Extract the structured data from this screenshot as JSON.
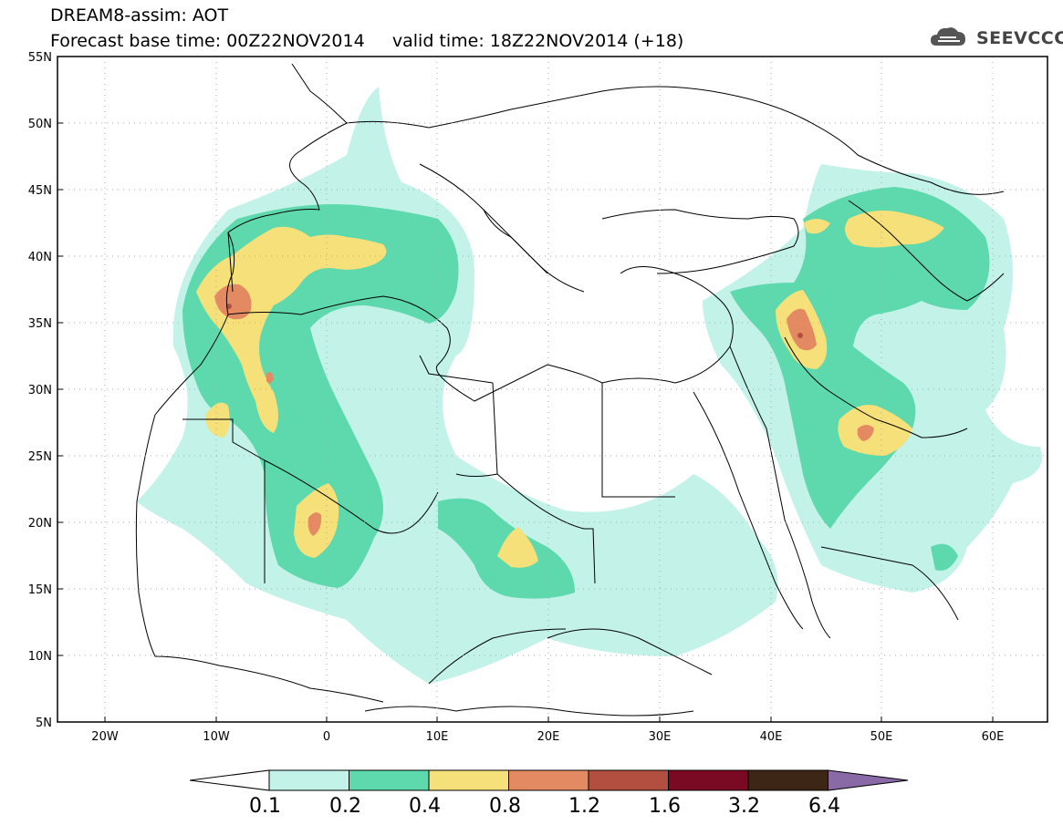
{
  "header": {
    "title_line1": "DREAM8-assim: AOT",
    "title_line2": "Forecast base time: 00Z22NOV2014     valid time: 18Z22NOV2014 (+18)",
    "logo_text": "SEEVCCC"
  },
  "map": {
    "lat_labels": [
      "55N",
      "50N",
      "45N",
      "40N",
      "35N",
      "30N",
      "25N",
      "20N",
      "15N",
      "10N",
      "5N"
    ],
    "lon_labels": [
      "20W",
      "10W",
      "0",
      "10E",
      "20E",
      "30E",
      "40E",
      "50E",
      "60E"
    ],
    "lat_range": [
      5,
      55
    ],
    "lon_range": [
      -25,
      65
    ],
    "grid": true
  },
  "colorbar": {
    "levels": [
      "0.1",
      "0.2",
      "0.4",
      "0.8",
      "1.2",
      "1.6",
      "3.2",
      "6.4"
    ],
    "colors": [
      "#ffffff",
      "#c2f2e8",
      "#5ed9ad",
      "#f5e07a",
      "#e48a62",
      "#b34f40",
      "#7a0a24",
      "#3d2616",
      "#8a6aa6"
    ]
  },
  "colors": {
    "aot_0_1": "#c2f2e8",
    "aot_0_2": "#5ed9ad",
    "aot_0_4": "#f5e07a",
    "aot_0_8": "#e48a62",
    "aot_1_2": "#b34f40"
  }
}
